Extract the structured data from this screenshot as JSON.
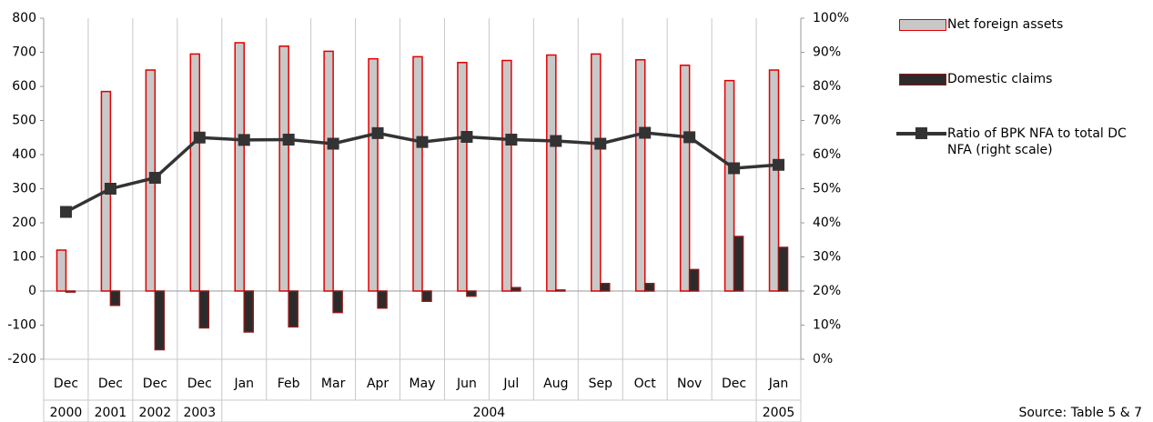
{
  "chart_data": {
    "type": "bar",
    "categories": [
      "Dec",
      "Dec",
      "Dec",
      "Dec",
      "Jan",
      "Feb",
      "Mar",
      "Apr",
      "May",
      "Jun",
      "Jul",
      "Aug",
      "Sep",
      "Oct",
      "Nov",
      "Dec",
      "Jan"
    ],
    "years": [
      "2000",
      "2001",
      "2002",
      "2003",
      "2004",
      "2004",
      "2004",
      "2004",
      "2004",
      "2004",
      "2004",
      "2004",
      "2004",
      "2004",
      "2004",
      "2004",
      "2005"
    ],
    "series": [
      {
        "name": "Net foreign assets",
        "type": "bar",
        "color": "#c8c8c8",
        "edge_color": "#e00000",
        "values": [
          120,
          585,
          648,
          695,
          728,
          718,
          703,
          681,
          687,
          670,
          676,
          692,
          695,
          678,
          662,
          617,
          648
        ]
      },
      {
        "name": "Domestic claims",
        "type": "bar",
        "color": "#2b2b2b",
        "edge_color": "#8b1a1a",
        "values": [
          -3,
          -42,
          -172,
          -108,
          -120,
          -105,
          -63,
          -50,
          -30,
          -15,
          10,
          3,
          22,
          22,
          63,
          160,
          128
        ]
      },
      {
        "name": "Ratio of BPK NFA to total DC NFA (right scale)",
        "type": "line",
        "axis": "y2",
        "color": "#333333",
        "values": [
          43.2,
          50,
          53.2,
          65,
          64.3,
          64.4,
          63.2,
          66.3,
          63.7,
          65.2,
          64.4,
          64,
          63.2,
          66.4,
          65.1,
          56,
          57
        ]
      }
    ],
    "ylim": [
      -200,
      800
    ],
    "yticks": [
      -200,
      -100,
      0,
      100,
      200,
      300,
      400,
      500,
      600,
      700,
      800
    ],
    "y2lim": [
      0,
      100
    ],
    "y2ticks": [
      {
        "value": 0,
        "label": "0%"
      },
      {
        "value": 10,
        "label": "10%"
      },
      {
        "value": 20,
        "label": "20%"
      },
      {
        "value": 30,
        "label": "30%"
      },
      {
        "value": 40,
        "label": "40%"
      },
      {
        "value": 50,
        "label": "50%"
      },
      {
        "value": 60,
        "label": "60%"
      },
      {
        "value": 70,
        "label": "70%"
      },
      {
        "value": 80,
        "label": "80%"
      },
      {
        "value": 90,
        "label": "90%"
      },
      {
        "value": 100,
        "label": "100%"
      }
    ],
    "grid": true,
    "legend": "right",
    "source": "Source: Table 5 & 7"
  }
}
